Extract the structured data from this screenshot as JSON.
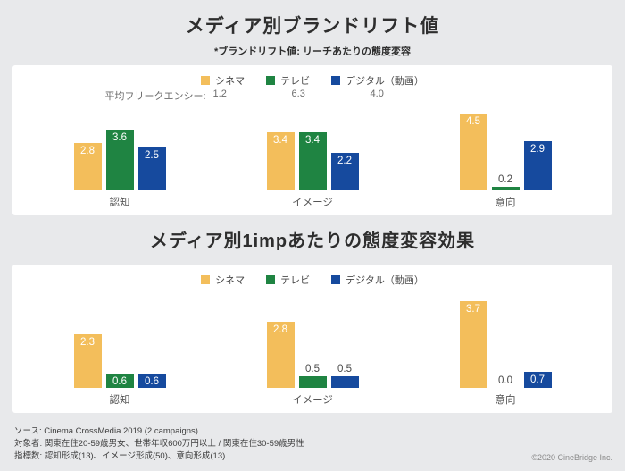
{
  "page": {
    "title": "メディア別ブランドリフト値",
    "subtitle": "*ブランドリフト値: リーチあたりの態度変容",
    "section2_title": "メディア別1impあたりの態度変容効果",
    "footer_lines": [
      "ソース: Cinema CrossMedia 2019 (2 campaigns)",
      "対象者: 関東在住20-59歳男女、世帯年収600万円以上 /  関東在住30-59歳男性",
      "指標数: 認知形成(13)、イメージ形成(50)、意向形成(13)"
    ],
    "copyright": "©2020 CineBridge Inc."
  },
  "colors": {
    "cinema": "#F3BE5B",
    "tv": "#1F8442",
    "digital": "#164A9E",
    "background": "#e8e9eb",
    "panel": "#ffffff"
  },
  "chart_data": [
    {
      "type": "bar",
      "title": "メディア別ブランドリフト値",
      "categories": [
        "認知",
        "イメージ",
        "意向"
      ],
      "series": [
        {
          "name": "シネマ",
          "color": "#F3BE5B",
          "values": [
            2.8,
            3.4,
            4.5
          ]
        },
        {
          "name": "テレビ",
          "color": "#1F8442",
          "values": [
            3.6,
            3.4,
            0.2
          ]
        },
        {
          "name": "デジタル（動画）",
          "color": "#164A9E",
          "values": [
            2.5,
            2.2,
            2.9
          ]
        }
      ],
      "avg_frequency_label": "平均フリークエンシー:",
      "avg_frequency": [
        1.2,
        6.3,
        4.0
      ],
      "ylim": [
        0,
        5
      ],
      "grid": false,
      "legend_position": "top"
    },
    {
      "type": "bar",
      "title": "メディア別1impあたりの態度変容効果",
      "categories": [
        "認知",
        "イメージ",
        "意向"
      ],
      "series": [
        {
          "name": "シネマ",
          "color": "#F3BE5B",
          "values": [
            2.3,
            2.8,
            3.7
          ]
        },
        {
          "name": "テレビ",
          "color": "#1F8442",
          "values": [
            0.6,
            0.5,
            0.0
          ]
        },
        {
          "name": "デジタル（動画）",
          "color": "#164A9E",
          "values": [
            0.6,
            0.5,
            0.7
          ]
        }
      ],
      "ylim": [
        0,
        4
      ],
      "grid": false,
      "legend_position": "top"
    }
  ]
}
